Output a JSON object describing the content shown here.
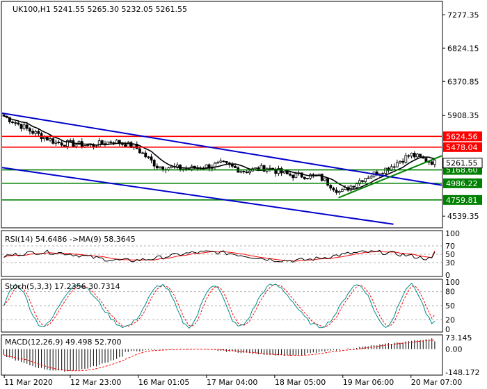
{
  "chart_data": [
    {
      "panel": "price",
      "type": "candlestick",
      "title": "UK100,H1",
      "ohlc_header": [
        "5241.55",
        "5265.30",
        "5232.05",
        "5261.55"
      ],
      "y_ticks": [
        "7277.35",
        "6824.15",
        "6370.85",
        "5908.35",
        "4539.35"
      ],
      "ylim": [
        4390,
        7450
      ],
      "current_price": "5261.55",
      "horizontal_levels": [
        {
          "value": 5624.56,
          "label": "5624.56",
          "color": "#ff0000"
        },
        {
          "value": 5478.04,
          "label": "5478.04",
          "color": "#ff0000"
        },
        {
          "value": 5168.6,
          "label": "5168.60",
          "color": "#008000"
        },
        {
          "value": 4986.22,
          "label": "4986.22",
          "color": "#008000"
        },
        {
          "value": 4759.81,
          "label": "4759.81",
          "color": "#008000"
        }
      ],
      "trend_lines": [
        {
          "color": "#0000cc",
          "from": [
            0,
            5940
          ],
          "to": [
            1.0,
            4960
          ]
        },
        {
          "color": "#0000cc",
          "from": [
            0,
            5200
          ],
          "to": [
            0.89,
            4430
          ]
        },
        {
          "color": "#008000",
          "from": [
            0.765,
            4790
          ],
          "to": [
            1.0,
            5360
          ]
        }
      ],
      "moving_average_color": "#000000",
      "candle_color": "#000000"
    },
    {
      "panel": "rsi",
      "type": "line",
      "label": "RSI(14) 54.6486  ->MA(9) 58.3645",
      "y_ticks": [
        "100",
        "70",
        "50",
        "30",
        "0"
      ],
      "ylim": [
        0,
        100
      ],
      "last_rsi": 54.6486,
      "last_ma": 58.3645
    },
    {
      "panel": "stochastic",
      "type": "line",
      "label": "Stoch(5,3,3) 17.2356 30.7314",
      "y_ticks": [
        "100",
        "80",
        "50",
        "20",
        "0"
      ],
      "ylim": [
        0,
        100
      ],
      "last_k": 17.2356,
      "last_d": 30.7314
    },
    {
      "panel": "macd",
      "type": "bar",
      "label": "MACD(12,26,9) 49.498 52.700",
      "y_ticks": [
        "73.145",
        "0.00",
        "-148.172"
      ],
      "ylim": [
        -148.172,
        73.145
      ],
      "last_macd": 49.498,
      "last_signal": 52.7
    }
  ],
  "x_axis_labels": [
    "11 Mar 2020",
    "12 Mar 23:00",
    "16 Mar 01:05",
    "17 Mar 04:00",
    "18 Mar 05:00",
    "19 Mar 06:00",
    "20 Mar 07:00"
  ],
  "colors": {
    "rsi_line": "#000000",
    "rsi_ma": "#ff0000",
    "stoch_k": "#008b8b",
    "stoch_d": "#ff0000",
    "macd_hist": "#000000",
    "macd_signal": "#ff0000",
    "current_price_bg": "#ffffff"
  }
}
